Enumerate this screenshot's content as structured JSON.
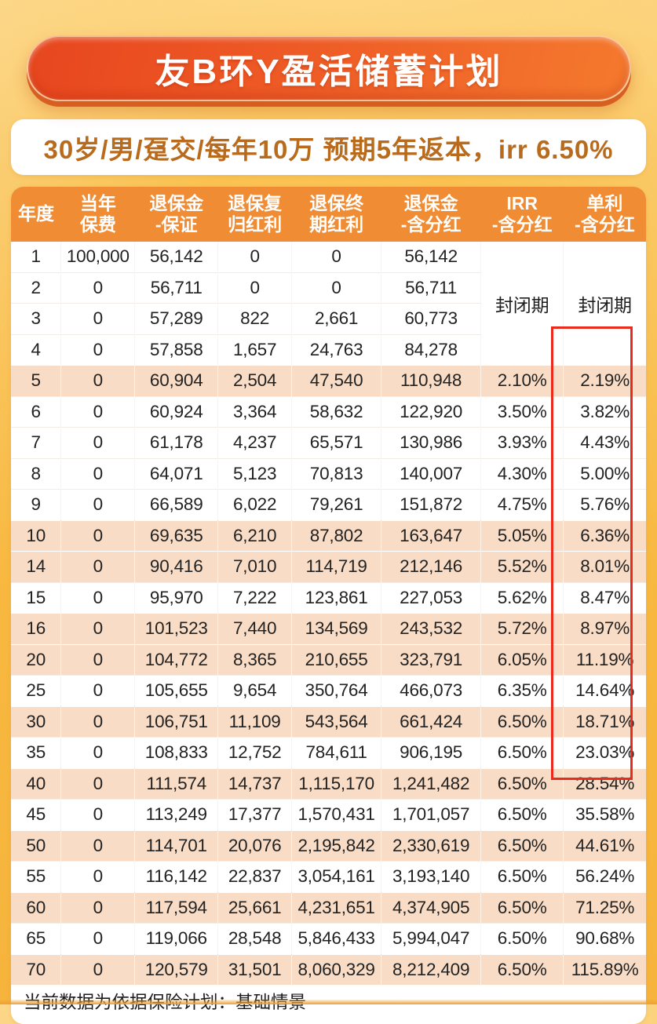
{
  "banner": {
    "title": "友B环Y盈活储蓄计划"
  },
  "profile": {
    "summary": "30岁/男/趸交/每年10万  预期5年返本，irr 6.50%"
  },
  "table": {
    "headers": [
      {
        "l1": "年度",
        "l2": ""
      },
      {
        "l1": "当年",
        "l2": "保费"
      },
      {
        "l1": "退保金",
        "l2": "-保证"
      },
      {
        "l1": "退保复",
        "l2": "归红利"
      },
      {
        "l1": "退保终",
        "l2": "期红利"
      },
      {
        "l1": "退保金",
        "l2": "-含分红"
      },
      {
        "l1": "IRR",
        "l2": "-含分红"
      },
      {
        "l1": "单利",
        "l2": "-含分红"
      }
    ],
    "closed_period_label": "封闭期",
    "rows": [
      {
        "year": "1",
        "premium": "100,000",
        "guaranteed": "56,142",
        "reversionary": "0",
        "terminal": "0",
        "total": "56,142",
        "irr": "",
        "simple": "",
        "highlight": false
      },
      {
        "year": "2",
        "premium": "0",
        "guaranteed": "56,711",
        "reversionary": "0",
        "terminal": "0",
        "total": "56,711",
        "irr": "",
        "simple": "",
        "highlight": false
      },
      {
        "year": "3",
        "premium": "0",
        "guaranteed": "57,289",
        "reversionary": "822",
        "terminal": "2,661",
        "total": "60,773",
        "irr": "",
        "simple": "",
        "highlight": false
      },
      {
        "year": "4",
        "premium": "0",
        "guaranteed": "57,858",
        "reversionary": "1,657",
        "terminal": "24,763",
        "total": "84,278",
        "irr": "",
        "simple": "",
        "highlight": false
      },
      {
        "year": "5",
        "premium": "0",
        "guaranteed": "60,904",
        "reversionary": "2,504",
        "terminal": "47,540",
        "total": "110,948",
        "irr": "2.10%",
        "simple": "2.19%",
        "highlight": true
      },
      {
        "year": "6",
        "premium": "0",
        "guaranteed": "60,924",
        "reversionary": "3,364",
        "terminal": "58,632",
        "total": "122,920",
        "irr": "3.50%",
        "simple": "3.82%",
        "highlight": false
      },
      {
        "year": "7",
        "premium": "0",
        "guaranteed": "61,178",
        "reversionary": "4,237",
        "terminal": "65,571",
        "total": "130,986",
        "irr": "3.93%",
        "simple": "4.43%",
        "highlight": false
      },
      {
        "year": "8",
        "premium": "0",
        "guaranteed": "64,071",
        "reversionary": "5,123",
        "terminal": "70,813",
        "total": "140,007",
        "irr": "4.30%",
        "simple": "5.00%",
        "highlight": false
      },
      {
        "year": "9",
        "premium": "0",
        "guaranteed": "66,589",
        "reversionary": "6,022",
        "terminal": "79,261",
        "total": "151,872",
        "irr": "4.75%",
        "simple": "5.76%",
        "highlight": false
      },
      {
        "year": "10",
        "premium": "0",
        "guaranteed": "69,635",
        "reversionary": "6,210",
        "terminal": "87,802",
        "total": "163,647",
        "irr": "5.05%",
        "simple": "6.36%",
        "highlight": true
      },
      {
        "year": "14",
        "premium": "0",
        "guaranteed": "90,416",
        "reversionary": "7,010",
        "terminal": "114,719",
        "total": "212,146",
        "irr": "5.52%",
        "simple": "8.01%",
        "highlight": true
      },
      {
        "year": "15",
        "premium": "0",
        "guaranteed": "95,970",
        "reversionary": "7,222",
        "terminal": "123,861",
        "total": "227,053",
        "irr": "5.62%",
        "simple": "8.47%",
        "highlight": false
      },
      {
        "year": "16",
        "premium": "0",
        "guaranteed": "101,523",
        "reversionary": "7,440",
        "terminal": "134,569",
        "total": "243,532",
        "irr": "5.72%",
        "simple": "8.97%",
        "highlight": true
      },
      {
        "year": "20",
        "premium": "0",
        "guaranteed": "104,772",
        "reversionary": "8,365",
        "terminal": "210,655",
        "total": "323,791",
        "irr": "6.05%",
        "simple": "11.19%",
        "highlight": true
      },
      {
        "year": "25",
        "premium": "0",
        "guaranteed": "105,655",
        "reversionary": "9,654",
        "terminal": "350,764",
        "total": "466,073",
        "irr": "6.35%",
        "simple": "14.64%",
        "highlight": false
      },
      {
        "year": "30",
        "premium": "0",
        "guaranteed": "106,751",
        "reversionary": "11,109",
        "terminal": "543,564",
        "total": "661,424",
        "irr": "6.50%",
        "simple": "18.71%",
        "highlight": true
      },
      {
        "year": "35",
        "premium": "0",
        "guaranteed": "108,833",
        "reversionary": "12,752",
        "terminal": "784,611",
        "total": "906,195",
        "irr": "6.50%",
        "simple": "23.03%",
        "highlight": false
      },
      {
        "year": "40",
        "premium": "0",
        "guaranteed": "111,574",
        "reversionary": "14,737",
        "terminal": "1,115,170",
        "total": "1,241,482",
        "irr": "6.50%",
        "simple": "28.54%",
        "highlight": true
      },
      {
        "year": "45",
        "premium": "0",
        "guaranteed": "113,249",
        "reversionary": "17,377",
        "terminal": "1,570,431",
        "total": "1,701,057",
        "irr": "6.50%",
        "simple": "35.58%",
        "highlight": false
      },
      {
        "year": "50",
        "premium": "0",
        "guaranteed": "114,701",
        "reversionary": "20,076",
        "terminal": "2,195,842",
        "total": "2,330,619",
        "irr": "6.50%",
        "simple": "44.61%",
        "highlight": true
      },
      {
        "year": "55",
        "premium": "0",
        "guaranteed": "116,142",
        "reversionary": "22,837",
        "terminal": "3,054,161",
        "total": "3,193,140",
        "irr": "6.50%",
        "simple": "56.24%",
        "highlight": false
      },
      {
        "year": "60",
        "premium": "0",
        "guaranteed": "117,594",
        "reversionary": "25,661",
        "terminal": "4,231,651",
        "total": "4,374,905",
        "irr": "6.50%",
        "simple": "71.25%",
        "highlight": true
      },
      {
        "year": "65",
        "premium": "0",
        "guaranteed": "119,066",
        "reversionary": "28,548",
        "terminal": "5,846,433",
        "total": "5,994,047",
        "irr": "6.50%",
        "simple": "90.68%",
        "highlight": false
      },
      {
        "year": "70",
        "premium": "0",
        "guaranteed": "120,579",
        "reversionary": "31,501",
        "terminal": "8,060,329",
        "total": "8,212,409",
        "irr": "6.50%",
        "simple": "115.89%",
        "highlight": true
      }
    ]
  },
  "footer": {
    "note": "当前数据为依据保险计划：基础情景"
  },
  "colors": {
    "header_bg": "#EF8C34",
    "row_highlight": "#F9DCC5",
    "accent_red": "#EA2A1C",
    "banner_gradient_start": "#E8481F",
    "banner_gradient_end": "#F4772D",
    "subtitle_text": "#B96B1D",
    "page_background": "#F8B941"
  }
}
